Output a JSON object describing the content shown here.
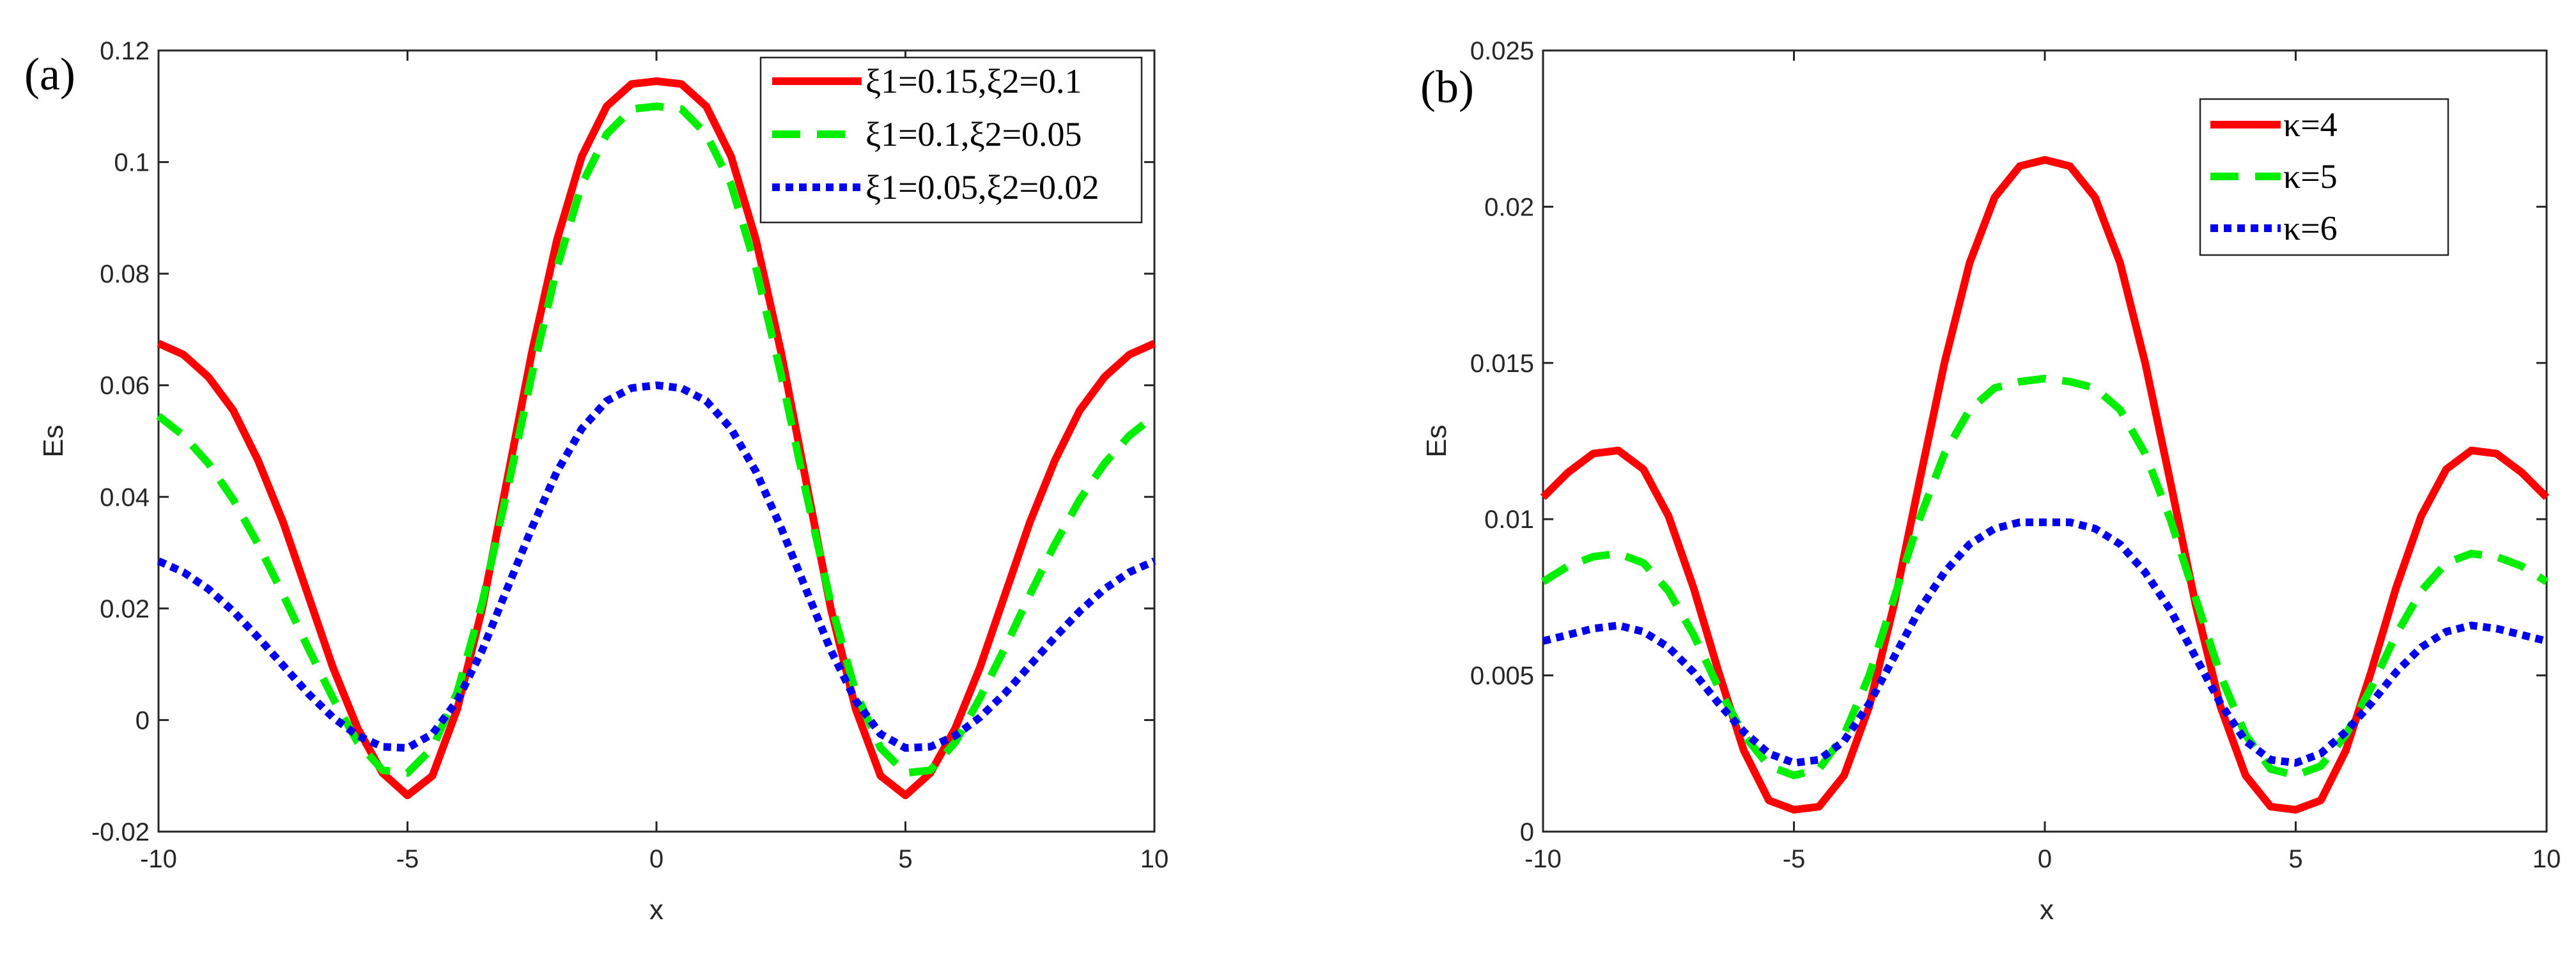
{
  "chart_data": [
    {
      "type": "line",
      "panel_label": "(a)",
      "xlabel": "x",
      "ylabel": "Es",
      "xlim": [
        -10,
        10
      ],
      "ylim": [
        -0.02,
        0.12
      ],
      "xticks": [
        "-10",
        "-5",
        "0",
        "5",
        "10"
      ],
      "yticks": [
        "-0.02",
        "0",
        "0.02",
        "0.04",
        "0.06",
        "0.08",
        "0.1",
        "0.12"
      ],
      "legend_position": "top-right",
      "x": [
        -10,
        -9.5,
        -9,
        -8.5,
        -8,
        -7.5,
        -7,
        -6.5,
        -6,
        -5.5,
        -5,
        -4.5,
        -4,
        -3.5,
        -3,
        -2.5,
        -2,
        -1.5,
        -1,
        -0.5,
        0,
        0.5,
        1,
        1.5,
        2,
        2.5,
        3,
        3.5,
        4,
        4.5,
        5,
        5.5,
        6,
        6.5,
        7,
        7.5,
        8,
        8.5,
        9,
        9.5,
        10
      ],
      "series": [
        {
          "name": "ξ1=0.15,ξ2=0.1",
          "color": "#ff0000",
          "style": "solid",
          "values": [
            0.0675,
            0.0655,
            0.0615,
            0.0555,
            0.0465,
            0.0355,
            0.0225,
            0.0095,
            -0.0015,
            -0.0095,
            -0.0135,
            -0.01,
            0.002,
            0.02,
            0.043,
            0.066,
            0.086,
            0.101,
            0.11,
            0.114,
            0.1145,
            0.114,
            0.11,
            0.101,
            0.086,
            0.066,
            0.043,
            0.02,
            0.002,
            -0.01,
            -0.0135,
            -0.0095,
            -0.0015,
            0.0095,
            0.0225,
            0.0355,
            0.0465,
            0.0555,
            0.0615,
            0.0655,
            0.0675
          ]
        },
        {
          "name": "ξ1=0.1,ξ2=0.05",
          "color": "#00ee00",
          "style": "dashed",
          "values": [
            0.0545,
            0.051,
            0.046,
            0.0395,
            0.0315,
            0.0225,
            0.013,
            0.004,
            -0.004,
            -0.009,
            -0.0095,
            -0.005,
            0.005,
            0.021,
            0.041,
            0.062,
            0.081,
            0.096,
            0.105,
            0.1095,
            0.11,
            0.1095,
            0.105,
            0.096,
            0.081,
            0.062,
            0.041,
            0.021,
            0.005,
            -0.005,
            -0.0095,
            -0.009,
            -0.004,
            0.004,
            0.013,
            0.0225,
            0.0315,
            0.0395,
            0.046,
            0.051,
            0.0545
          ]
        },
        {
          "name": "ξ1=0.05,ξ2=0.02",
          "color": "#0000ee",
          "style": "dotted",
          "values": [
            0.0285,
            0.0265,
            0.0235,
            0.0195,
            0.0148,
            0.0098,
            0.0048,
            0.0005,
            -0.0028,
            -0.0048,
            -0.005,
            -0.0025,
            0.0035,
            0.0125,
            0.0235,
            0.0345,
            0.0445,
            0.0522,
            0.0572,
            0.0595,
            0.06,
            0.0595,
            0.0572,
            0.0522,
            0.0445,
            0.0345,
            0.0235,
            0.0125,
            0.0035,
            -0.0025,
            -0.005,
            -0.0048,
            -0.0028,
            0.0005,
            0.0048,
            0.0098,
            0.0148,
            0.0195,
            0.0235,
            0.0265,
            0.0285
          ]
        }
      ]
    },
    {
      "type": "line",
      "panel_label": "(b)",
      "xlabel": "x",
      "ylabel": "Es",
      "xlim": [
        -10,
        10
      ],
      "ylim": [
        0,
        0.025
      ],
      "xticks": [
        "-10",
        "-5",
        "0",
        "5",
        "10"
      ],
      "yticks": [
        "0",
        "0.005",
        "0.01",
        "0.015",
        "0.02",
        "0.025"
      ],
      "legend_position": "top-right",
      "x": [
        -10,
        -9.5,
        -9,
        -8.5,
        -8,
        -7.5,
        -7,
        -6.5,
        -6,
        -5.5,
        -5,
        -4.5,
        -4,
        -3.5,
        -3,
        -2.5,
        -2,
        -1.5,
        -1,
        -0.5,
        0,
        0.5,
        1,
        1.5,
        2,
        2.5,
        3,
        3.5,
        4,
        4.5,
        5,
        5.5,
        6,
        6.5,
        7,
        7.5,
        8,
        8.5,
        9,
        9.5,
        10
      ],
      "series": [
        {
          "name": "κ=4",
          "color": "#ff0000",
          "style": "solid",
          "values": [
            0.0107,
            0.0115,
            0.0121,
            0.0122,
            0.0116,
            0.0101,
            0.0078,
            0.0051,
            0.0026,
            0.001,
            0.0007,
            0.0008,
            0.0018,
            0.004,
            0.0073,
            0.0112,
            0.015,
            0.0182,
            0.0203,
            0.0213,
            0.0215,
            0.0213,
            0.0203,
            0.0182,
            0.015,
            0.0112,
            0.0073,
            0.004,
            0.0018,
            0.0008,
            0.0007,
            0.001,
            0.0026,
            0.0051,
            0.0078,
            0.0101,
            0.0116,
            0.0122,
            0.0121,
            0.0115,
            0.0107
          ]
        },
        {
          "name": "κ=5",
          "color": "#00ee00",
          "style": "dashed",
          "values": [
            0.008,
            0.0085,
            0.0088,
            0.0089,
            0.0086,
            0.0077,
            0.0063,
            0.0046,
            0.0031,
            0.0021,
            0.0018,
            0.002,
            0.0031,
            0.005,
            0.0075,
            0.01,
            0.0121,
            0.0135,
            0.0142,
            0.0144,
            0.0145,
            0.0144,
            0.0142,
            0.0135,
            0.0121,
            0.01,
            0.0075,
            0.005,
            0.0031,
            0.002,
            0.0018,
            0.0021,
            0.0031,
            0.0046,
            0.0063,
            0.0077,
            0.0086,
            0.0089,
            0.0088,
            0.0085,
            0.008
          ]
        },
        {
          "name": "κ=6",
          "color": "#0000ee",
          "style": "dotted",
          "values": [
            0.0061,
            0.0063,
            0.0065,
            0.0066,
            0.0064,
            0.0059,
            0.0051,
            0.0041,
            0.0032,
            0.0025,
            0.0022,
            0.0023,
            0.0029,
            0.0041,
            0.0056,
            0.0071,
            0.0083,
            0.0092,
            0.0097,
            0.0099,
            0.0099,
            0.0099,
            0.0097,
            0.0092,
            0.0083,
            0.0071,
            0.0056,
            0.0041,
            0.0029,
            0.0023,
            0.0022,
            0.0025,
            0.0032,
            0.0041,
            0.0051,
            0.0059,
            0.0064,
            0.0066,
            0.0065,
            0.0063,
            0.0061
          ]
        }
      ]
    }
  ]
}
